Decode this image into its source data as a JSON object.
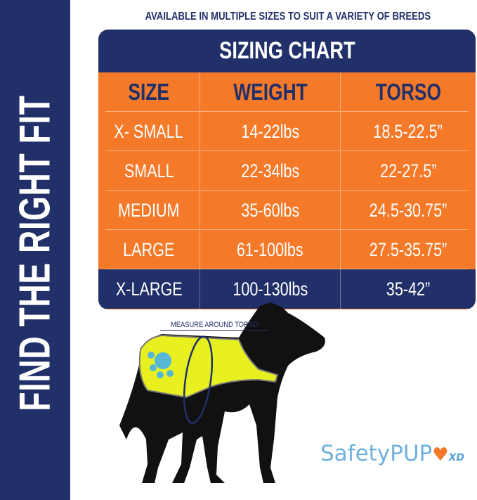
{
  "side_banner": "FIND THE RIGHT FIT",
  "subtitle": "AVAILABLE IN MULTIPLE SIZES TO SUIT A VARIETY OF BREEDS",
  "table": {
    "title": "SIZING CHART",
    "headers": [
      "SIZE",
      "WEIGHT",
      "TORSO"
    ],
    "rows": [
      [
        "X- SMALL",
        "14-22lbs",
        "18.5-22.5”"
      ],
      [
        "SMALL",
        "22-34lbs",
        "22-27.5”"
      ],
      [
        "MEDIUM",
        "35-60lbs",
        "24.5-30.75”"
      ],
      [
        "LARGE",
        "61-100lbs",
        "27.5-35.75”"
      ],
      [
        "X-LARGE",
        "100-130lbs",
        "35-42”"
      ]
    ]
  },
  "measure_label": "MEASURE AROUND TORSO",
  "logo": {
    "text": "SafetyPUP",
    "suffix": "XD"
  },
  "colors": {
    "navy": "#22306a",
    "orange": "#f47a2a",
    "vest": "#e8f020",
    "logo_blue": "#6fb1dd"
  }
}
